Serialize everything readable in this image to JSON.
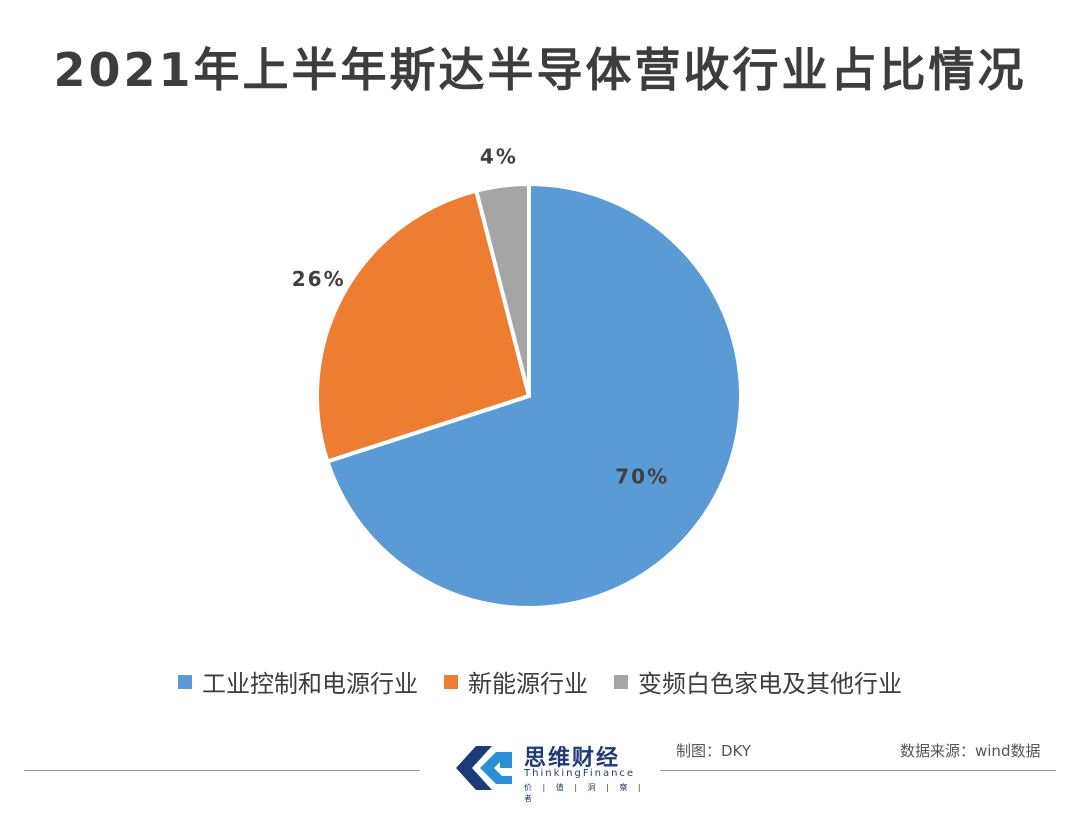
{
  "chart_data": {
    "type": "pie",
    "title": "2021年上半年斯达半导体营收行业占比情况",
    "categories": [
      "工业控制和电源行业",
      "新能源行业",
      "变频白色家电及其他行业"
    ],
    "values": [
      70,
      26,
      4
    ],
    "data_labels": [
      "70%",
      "26%",
      "4%"
    ],
    "colors": [
      "#5b9bd5",
      "#ed7d31",
      "#a5a5a5"
    ],
    "legend_position": "bottom"
  },
  "footer": {
    "made_by": "制图：DKY",
    "source": "数据来源：wind数据"
  },
  "logo": {
    "name": "思维财经",
    "english": "ThinkingFinance",
    "tagline": "价 | 值 | 洞 | 察 | 者"
  }
}
